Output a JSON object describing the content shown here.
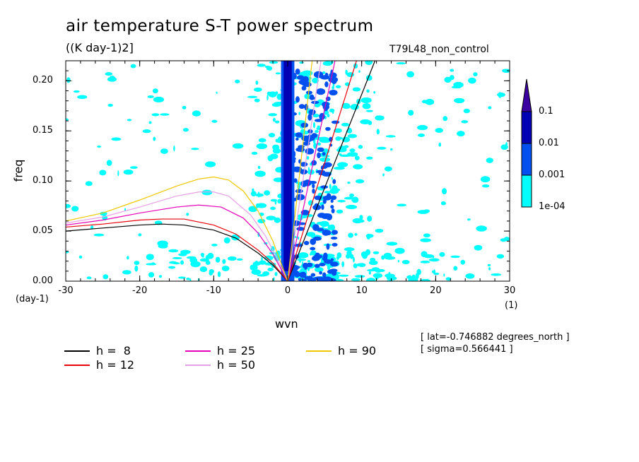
{
  "title": "air temperature S-T power spectrum",
  "units": "((K day-1)2]",
  "run_name": "T79L48_non_control",
  "info_lat": "[ lat=-0.746882 degrees_north ]",
  "info_sigma": "[ sigma=0.566441 ]",
  "colors": {
    "h8": "#000000",
    "h12": "#e8000b",
    "h25": "#e600b8",
    "h50": "#e6a0e6",
    "h90": "#f0c800",
    "level1": "#00ffff",
    "level2": "#0050f0",
    "level3": "#0000b4",
    "level4": "#3c00a0"
  },
  "chart_data": {
    "type": "heatmap",
    "title": "air temperature S-T power spectrum",
    "subtitle": "((K day-1)2]",
    "xlabel": "wvn",
    "ylabel": "freq",
    "xunit": "(1)",
    "yunit": "(day-1)",
    "xlim": [
      -30,
      30
    ],
    "ylim": [
      0,
      0.22
    ],
    "xticks": [
      -30,
      -20,
      -10,
      0,
      10,
      20,
      30
    ],
    "xtick_labels": [
      "-30",
      "-20",
      "-10",
      "0",
      "10",
      "20",
      "30"
    ],
    "yticks": [
      0,
      0.05,
      0.1,
      0.15,
      0.2
    ],
    "ytick_labels": [
      "0.00",
      "0.05",
      "0.10",
      "0.15",
      "0.20"
    ],
    "colorbar": {
      "levels": [
        "0.1",
        "0.01",
        "0.001",
        "1e-04"
      ],
      "colors": [
        "#3c00a0",
        "#0000b4",
        "#0050f0",
        "#00ffff"
      ]
    },
    "dispersion_curves": {
      "series": [
        {
          "name": "h =  8",
          "color": "#000000",
          "kelvin": [
            [
              0,
              0
            ],
            [
              11.8,
              0.22
            ]
          ],
          "rossby": [
            [
              -30,
              0.05
            ],
            [
              -25,
              0.053
            ],
            [
              -20,
              0.056
            ],
            [
              -17,
              0.057
            ],
            [
              -14,
              0.056
            ],
            [
              -10,
              0.051
            ],
            [
              -7,
              0.043
            ],
            [
              -4,
              0.028
            ],
            [
              -2,
              0.016
            ],
            [
              0,
              0
            ]
          ]
        },
        {
          "name": "h = 12",
          "color": "#e8000b",
          "kelvin": [
            [
              0,
              0
            ],
            [
              9.3,
              0.22
            ]
          ],
          "rossby": [
            [
              -30,
              0.054
            ],
            [
              -25,
              0.057
            ],
            [
              -20,
              0.061
            ],
            [
              -17,
              0.062
            ],
            [
              -14,
              0.062
            ],
            [
              -10,
              0.056
            ],
            [
              -7,
              0.047
            ],
            [
              -4,
              0.031
            ],
            [
              -2,
              0.018
            ],
            [
              0,
              0
            ]
          ]
        },
        {
          "name": "h = 25",
          "color": "#e600b8",
          "kelvin": [
            [
              0,
              0
            ],
            [
              6.4,
              0.22
            ]
          ],
          "rossby": [
            [
              -30,
              0.056
            ],
            [
              -25,
              0.061
            ],
            [
              -20,
              0.068
            ],
            [
              -15,
              0.074
            ],
            [
              -12,
              0.076
            ],
            [
              -9,
              0.074
            ],
            [
              -6,
              0.063
            ],
            [
              -4,
              0.048
            ],
            [
              -2,
              0.027
            ],
            [
              0,
              0
            ]
          ]
        },
        {
          "name": "h = 50",
          "color": "#e6a0e6",
          "kelvin": [
            [
              0,
              0
            ],
            [
              4.5,
              0.22
            ]
          ],
          "rossby": [
            [
              -30,
              0.058
            ],
            [
              -25,
              0.064
            ],
            [
              -20,
              0.074
            ],
            [
              -15,
              0.085
            ],
            [
              -12,
              0.089
            ],
            [
              -10,
              0.089
            ],
            [
              -8,
              0.085
            ],
            [
              -5,
              0.066
            ],
            [
              -3,
              0.045
            ],
            [
              -1.5,
              0.024
            ],
            [
              0,
              0
            ]
          ]
        },
        {
          "name": "h = 90",
          "color": "#f0c800",
          "kelvin": [
            [
              0,
              0
            ],
            [
              3.3,
              0.22
            ]
          ],
          "rossby": [
            [
              -30,
              0.06
            ],
            [
              -25,
              0.068
            ],
            [
              -20,
              0.081
            ],
            [
              -15,
              0.095
            ],
            [
              -12,
              0.102
            ],
            [
              -10,
              0.104
            ],
            [
              -8,
              0.101
            ],
            [
              -6,
              0.09
            ],
            [
              -4,
              0.07
            ],
            [
              -2,
              0.04
            ],
            [
              0,
              0
            ]
          ]
        }
      ]
    }
  }
}
